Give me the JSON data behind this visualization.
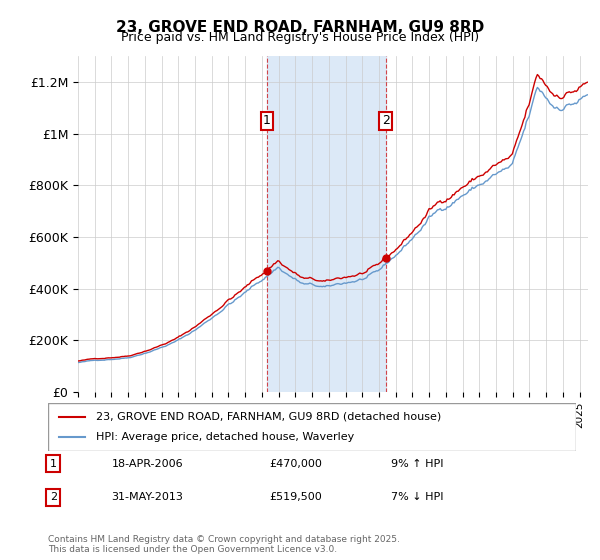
{
  "title": "23, GROVE END ROAD, FARNHAM, GU9 8RD",
  "subtitle": "Price paid vs. HM Land Registry's House Price Index (HPI)",
  "legend_line1": "23, GROVE END ROAD, FARNHAM, GU9 8RD (detached house)",
  "legend_line2": "HPI: Average price, detached house, Waverley",
  "annotation1_label": "1",
  "annotation1_date": "18-APR-2006",
  "annotation1_price": "£470,000",
  "annotation1_hpi": "9% ↑ HPI",
  "annotation2_label": "2",
  "annotation2_date": "31-MAY-2013",
  "annotation2_price": "£519,500",
  "annotation2_hpi": "7% ↓ HPI",
  "footer": "Contains HM Land Registry data © Crown copyright and database right 2025.\nThis data is licensed under the Open Government Licence v3.0.",
  "purchase1_year": 2006.3,
  "purchase1_price": 470000,
  "purchase2_year": 2013.4,
  "purchase2_price": 519500,
  "shade_color": "#dce9f7",
  "line_red": "#cc0000",
  "line_blue": "#6699cc",
  "background_color": "#ffffff",
  "grid_color": "#cccccc",
  "ylim": [
    0,
    1300000
  ],
  "xlim_start": 1995,
  "xlim_end": 2025.5
}
